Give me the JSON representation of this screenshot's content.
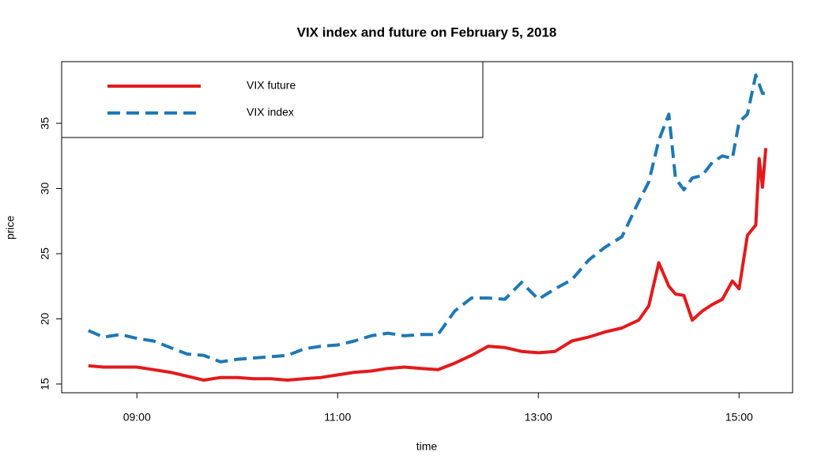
{
  "chart_data": {
    "type": "line",
    "title": "VIX index and future on February 5, 2018",
    "x_label": "time",
    "y_label": "price",
    "x": [
      511,
      520,
      530,
      540,
      550,
      560,
      570,
      580,
      590,
      600,
      610,
      620,
      630,
      640,
      650,
      660,
      670,
      680,
      690,
      700,
      710,
      720,
      730,
      740,
      750,
      760,
      770,
      780,
      790,
      800,
      810,
      820,
      830,
      840,
      846,
      852,
      858,
      862,
      867,
      872,
      878,
      884,
      890,
      896,
      900,
      905,
      910,
      912,
      914,
      916
    ],
    "series": [
      {
        "name": "VIX future",
        "color": "#e31a1c",
        "linestyle": "solid",
        "values": [
          16.4,
          16.3,
          16.3,
          16.3,
          16.1,
          15.9,
          15.6,
          15.3,
          15.5,
          15.5,
          15.4,
          15.4,
          15.3,
          15.4,
          15.5,
          15.7,
          15.9,
          16.0,
          16.2,
          16.3,
          16.2,
          16.1,
          16.6,
          17.2,
          17.9,
          17.8,
          17.5,
          17.4,
          17.5,
          18.3,
          18.6,
          19.0,
          19.3,
          19.9,
          21.0,
          24.3,
          22.5,
          21.9,
          21.8,
          19.9,
          20.6,
          21.1,
          21.5,
          22.9,
          22.3,
          26.4,
          27.2,
          32.3,
          30.1,
          33.1
        ]
      },
      {
        "name": "VIX index",
        "color": "#1f78b4",
        "linestyle": "dashed",
        "values": [
          19.1,
          18.6,
          18.8,
          18.5,
          18.3,
          17.8,
          17.3,
          17.2,
          16.7,
          16.9,
          17.0,
          17.1,
          17.2,
          17.7,
          17.9,
          18.0,
          18.3,
          18.7,
          18.9,
          18.7,
          18.8,
          18.8,
          20.6,
          21.6,
          21.6,
          21.5,
          22.8,
          21.5,
          22.3,
          23.0,
          24.5,
          25.5,
          26.3,
          29.0,
          30.5,
          33.7,
          35.7,
          30.8,
          29.9,
          30.8,
          31.0,
          32.0,
          32.5,
          32.3,
          35.1,
          35.7,
          38.7,
          38.0,
          37.3,
          37.3
        ]
      }
    ],
    "xlim": [
      495,
      932
    ],
    "xticks": [
      {
        "value": 540,
        "label": "09:00"
      },
      {
        "value": 660,
        "label": "11:00"
      },
      {
        "value": 780,
        "label": "13:00"
      },
      {
        "value": 900,
        "label": "15:00"
      }
    ],
    "ylim": [
      14.33,
      39.73
    ],
    "yticks": [
      15,
      20,
      25,
      30,
      35
    ],
    "legend": "top-left"
  }
}
